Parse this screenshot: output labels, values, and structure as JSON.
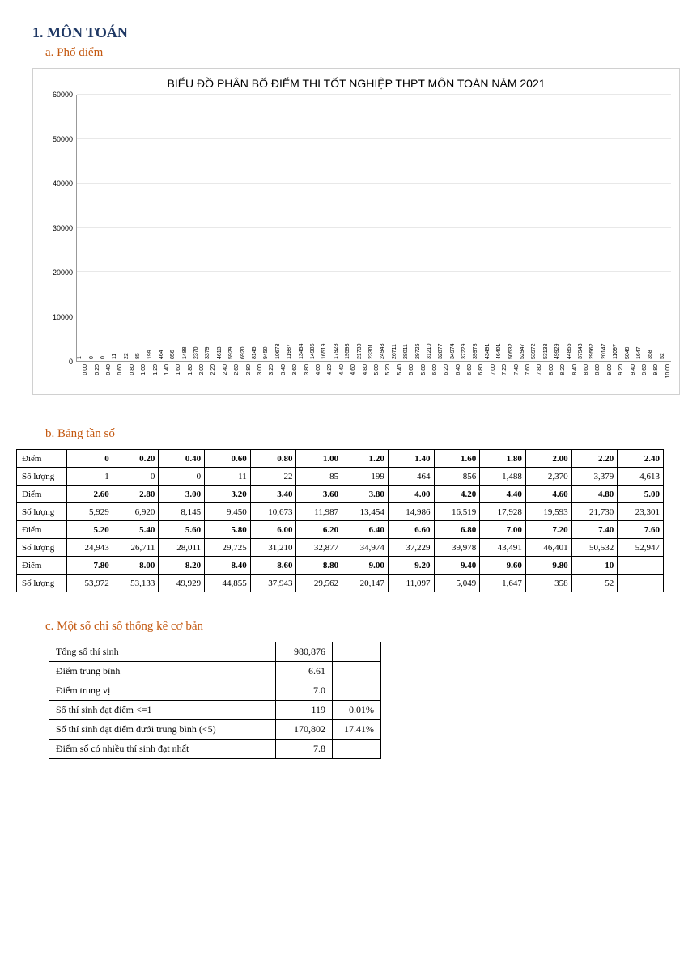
{
  "headings": {
    "section": "1.  MÔN TOÁN",
    "a": "a.   Phổ điểm",
    "b": "b.   Bảng tần số",
    "c": "c.   Một số chỉ số thống kê cơ bản"
  },
  "chart": {
    "type": "bar",
    "title": "BIỂU ĐỒ PHÂN BỐ ĐIỂM THI TỐT NGHIỆP THPT MÔN TOÁN NĂM 2021",
    "ylim": [
      0,
      60000
    ],
    "ytick_step": 10000,
    "yticks": [
      "0",
      "10000",
      "20000",
      "30000",
      "40000",
      "50000",
      "60000"
    ],
    "bar_color": "#2e75b6",
    "grid_color": "#e8e8e8",
    "background_color": "#ffffff",
    "label_font_size": 7,
    "categories": [
      "0.00",
      "0.20",
      "0.40",
      "0.60",
      "0.80",
      "1.00",
      "1.20",
      "1.40",
      "1.60",
      "1.80",
      "2.00",
      "2.20",
      "2.40",
      "2.60",
      "2.80",
      "3.00",
      "3.20",
      "3.40",
      "3.60",
      "3.80",
      "4.00",
      "4.20",
      "4.40",
      "4.60",
      "4.80",
      "5.00",
      "5.20",
      "5.40",
      "5.60",
      "5.80",
      "6.00",
      "6.20",
      "6.40",
      "6.60",
      "6.80",
      "7.00",
      "7.20",
      "7.40",
      "7.60",
      "7.80",
      "8.00",
      "8.20",
      "8.40",
      "8.60",
      "8.80",
      "9.00",
      "9.20",
      "9.40",
      "9.60",
      "9.80",
      "10.00"
    ],
    "values": [
      1,
      0,
      0,
      11,
      22,
      85,
      199,
      464,
      856,
      1488,
      2370,
      3379,
      4613,
      5929,
      6920,
      8145,
      9450,
      10673,
      11987,
      13454,
      14986,
      16519,
      17928,
      19593,
      21730,
      23301,
      24943,
      26711,
      28011,
      29725,
      31210,
      32877,
      34974,
      37229,
      39978,
      43491,
      46401,
      50532,
      52947,
      53972,
      53133,
      49929,
      44855,
      37943,
      29562,
      20147,
      11097,
      5049,
      1647,
      358,
      52
    ]
  },
  "freq_table": {
    "row_label_score": "Điểm",
    "row_label_count": "Số lượng",
    "rows": [
      {
        "scores": [
          "0",
          "0.20",
          "0.40",
          "0.60",
          "0.80",
          "1.00",
          "1.20",
          "1.40",
          "1.60",
          "1.80",
          "2.00",
          "2.20",
          "2.40"
        ],
        "counts": [
          "1",
          "0",
          "0",
          "11",
          "22",
          "85",
          "199",
          "464",
          "856",
          "1,488",
          "2,370",
          "3,379",
          "4,613"
        ]
      },
      {
        "scores": [
          "2.60",
          "2.80",
          "3.00",
          "3.20",
          "3.40",
          "3.60",
          "3.80",
          "4.00",
          "4.20",
          "4.40",
          "4.60",
          "4.80",
          "5.00"
        ],
        "counts": [
          "5,929",
          "6,920",
          "8,145",
          "9,450",
          "10,673",
          "11,987",
          "13,454",
          "14,986",
          "16,519",
          "17,928",
          "19,593",
          "21,730",
          "23,301"
        ]
      },
      {
        "scores": [
          "5.20",
          "5.40",
          "5.60",
          "5.80",
          "6.00",
          "6.20",
          "6.40",
          "6.60",
          "6.80",
          "7.00",
          "7.20",
          "7.40",
          "7.60"
        ],
        "counts": [
          "24,943",
          "26,711",
          "28,011",
          "29,725",
          "31,210",
          "32,877",
          "34,974",
          "37,229",
          "39,978",
          "43,491",
          "46,401",
          "50,532",
          "52,947"
        ]
      },
      {
        "scores": [
          "7.80",
          "8.00",
          "8.20",
          "8.40",
          "8.60",
          "8.80",
          "9.00",
          "9.20",
          "9.40",
          "9.60",
          "9.80",
          "10",
          ""
        ],
        "counts": [
          "53,972",
          "53,133",
          "49,929",
          "44,855",
          "37,943",
          "29,562",
          "20,147",
          "11,097",
          "5,049",
          "1,647",
          "358",
          "52",
          ""
        ]
      }
    ]
  },
  "stats_table": {
    "rows": [
      {
        "label": "Tổng số thí sinh",
        "val": "980,876",
        "pct": ""
      },
      {
        "label": "Điểm trung bình",
        "val": "6.61",
        "pct": ""
      },
      {
        "label": "Điểm trung vị",
        "val": "7.0",
        "pct": ""
      },
      {
        "label": "Số thí sinh đạt điểm <=1",
        "val": "119",
        "pct": "0.01%"
      },
      {
        "label": "Số thí sinh đạt điểm dưới trung bình (<5)",
        "val": "170,802",
        "pct": "17.41%"
      },
      {
        "label": "Điểm số có nhiều thí sinh đạt nhất",
        "val": "7.8",
        "pct": ""
      }
    ]
  }
}
